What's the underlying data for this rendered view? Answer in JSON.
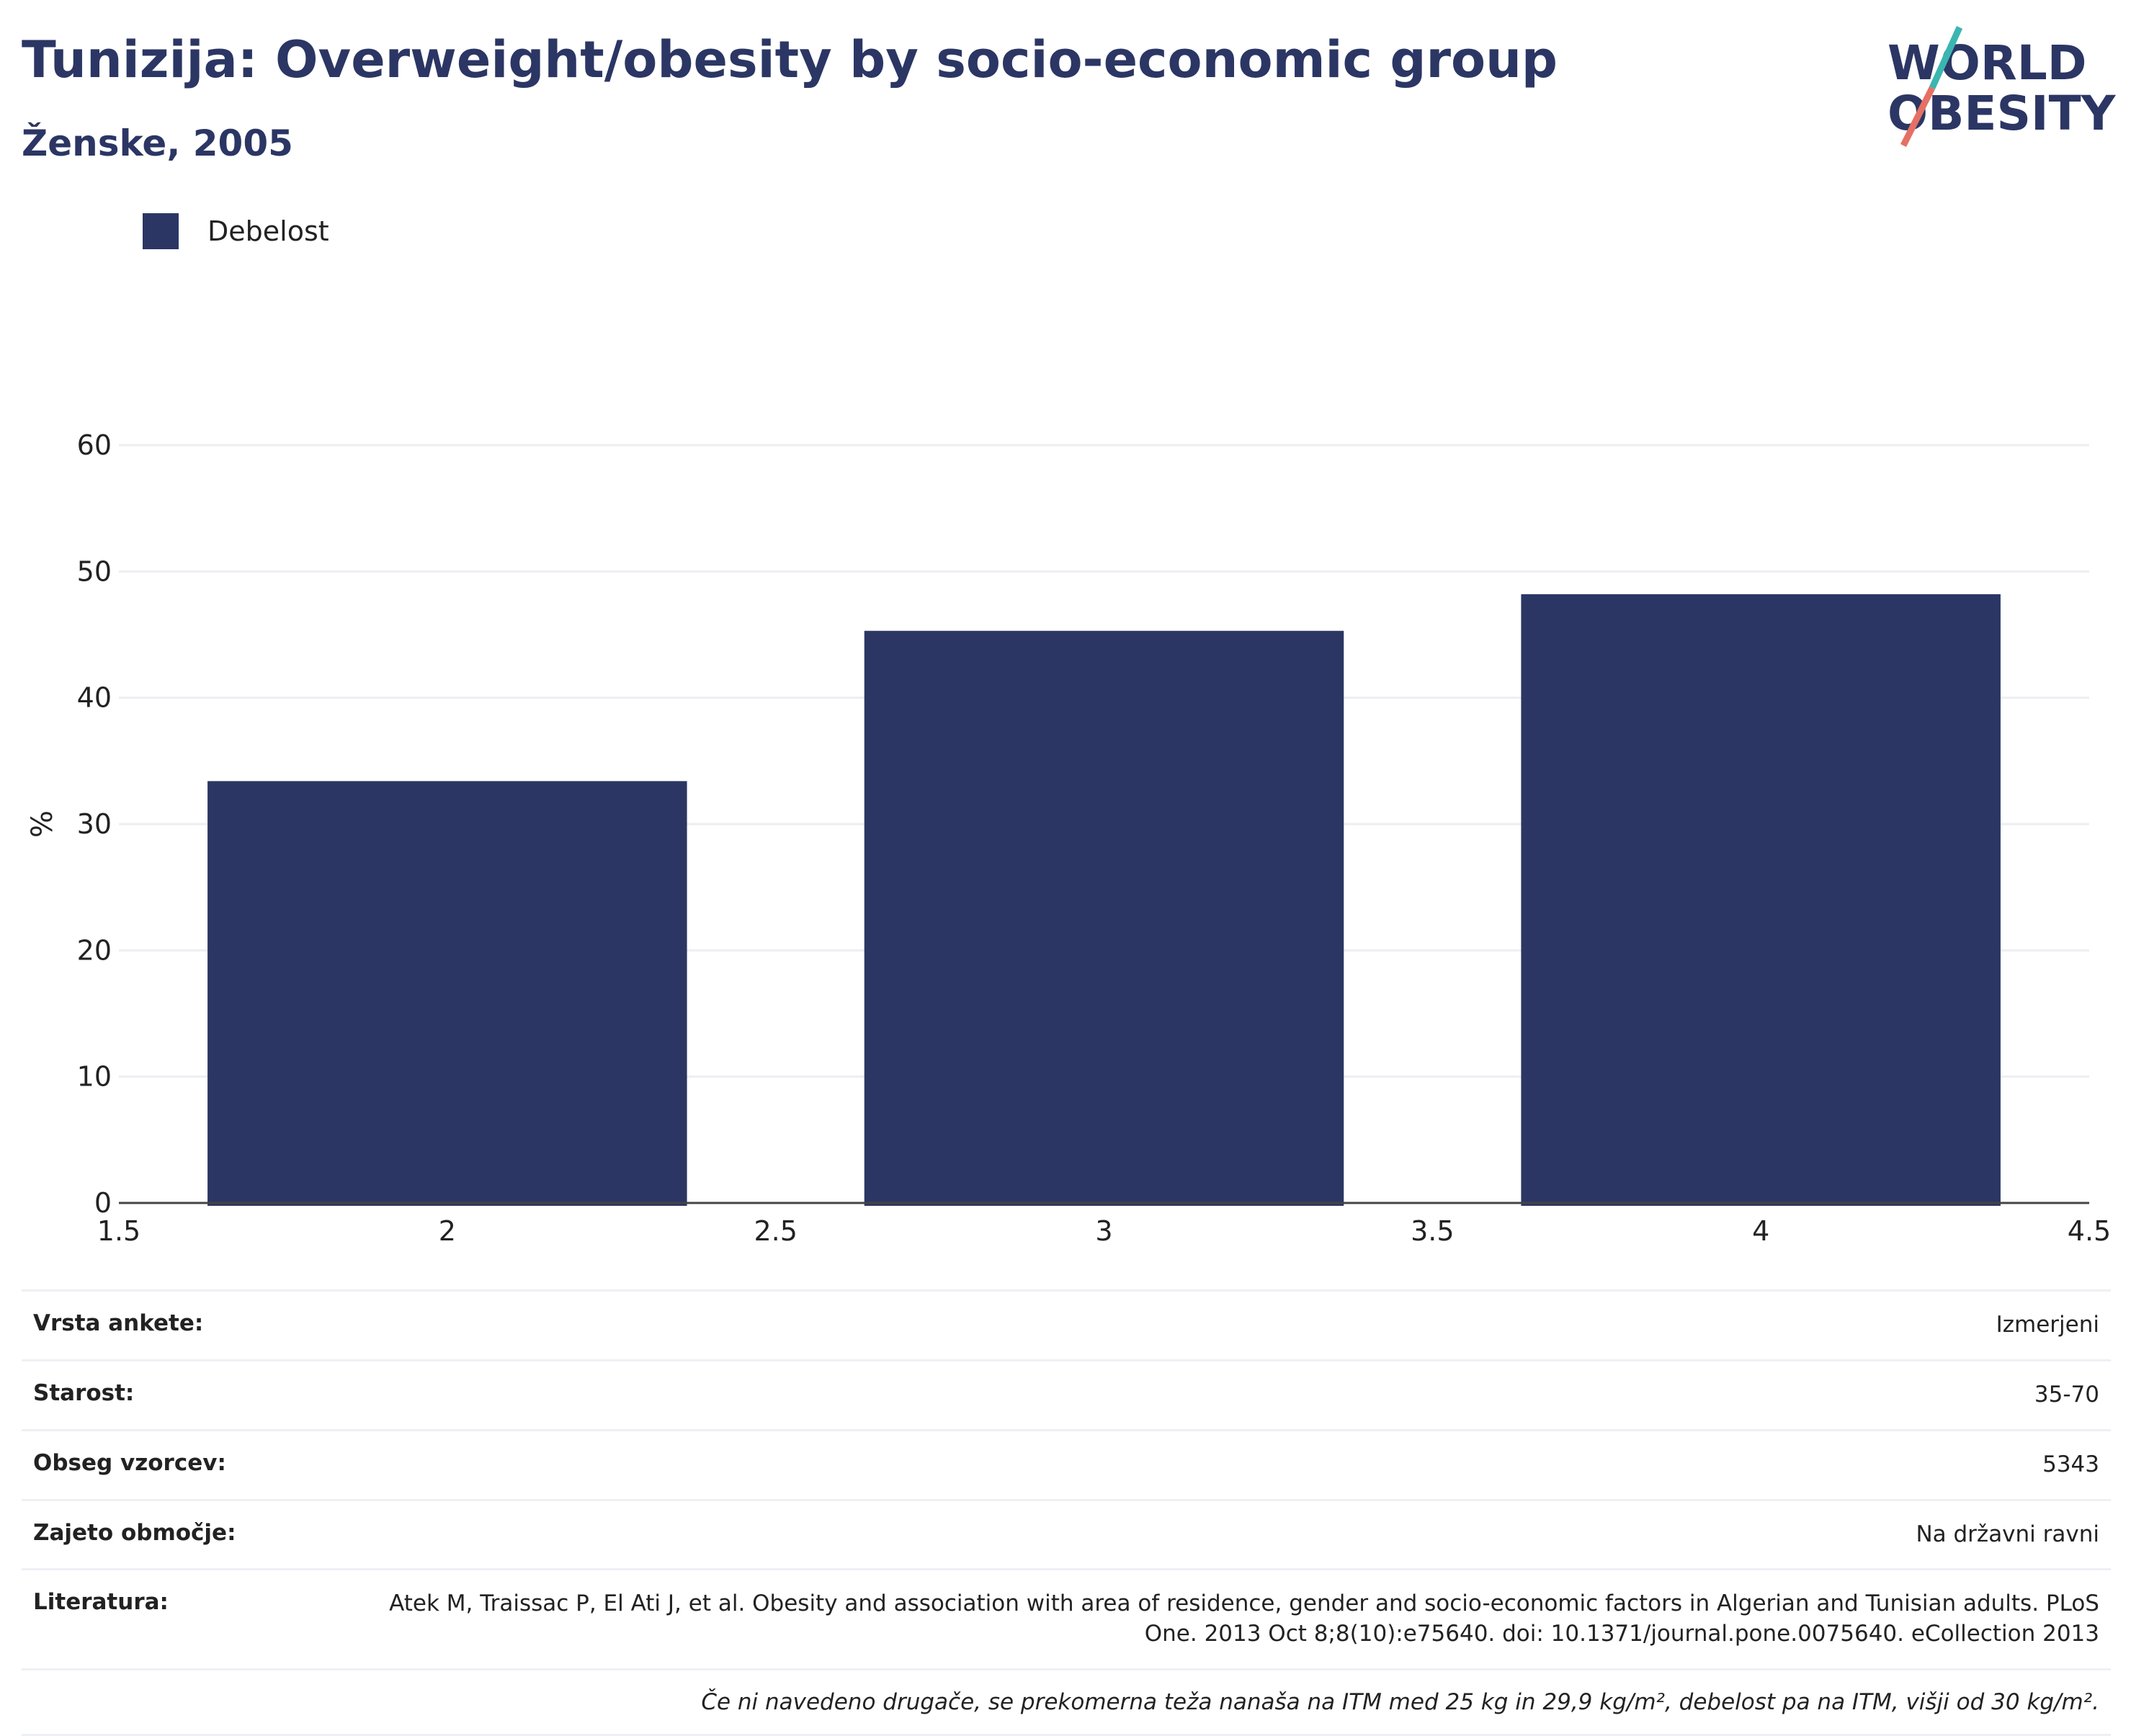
{
  "header": {
    "title": "Tunizija: Overweight/obesity by socio-economic group",
    "subtitle": "Ženske, 2005"
  },
  "logo": {
    "line1": "WORLD",
    "line2": "OBESITY"
  },
  "colors": {
    "bar": "#2b3664",
    "title": "#2b3664",
    "grid": "#eceef2",
    "logo_teal": "#3bb6b0",
    "logo_coral": "#e57063"
  },
  "chart_data": {
    "type": "bar",
    "title": "Tunizija: Overweight/obesity by socio-economic group",
    "subtitle": "Ženske, 2005",
    "xlabel": "",
    "ylabel": "%",
    "xlim": [
      1.5,
      4.5
    ],
    "ylim": [
      0,
      60
    ],
    "xticks": [
      "1.5",
      "2",
      "2.5",
      "3",
      "3.5",
      "4",
      "4.5"
    ],
    "yticks": [
      "0",
      "10",
      "20",
      "30",
      "40",
      "50",
      "60"
    ],
    "grid": true,
    "legend_position": "top-left",
    "series": [
      {
        "name": "Debelost",
        "x": [
          2,
          3,
          4
        ],
        "values": [
          33.4,
          45.3,
          48.2
        ]
      }
    ]
  },
  "info": {
    "rows": [
      {
        "label": "Vrsta ankete:",
        "value": "Izmerjeni"
      },
      {
        "label": "Starost:",
        "value": "35-70"
      },
      {
        "label": "Obseg vzorcev:",
        "value": "5343"
      },
      {
        "label": "Zajeto območje:",
        "value": "Na državni ravni"
      },
      {
        "label": "Literatura:",
        "value": "Atek M, Traissac P, El Ati J, et al. Obesity and association with area of residence, gender and socio-economic factors in Algerian and Tunisian adults. PLoS One. 2013 Oct 8;8(10):e75640. doi: 10.1371/journal.pone.0075640. eCollection 2013"
      }
    ],
    "note": "Če ni navedeno drugače, se prekomerna teža nanaša na ITM med 25 kg in 29,9 kg/m², debelost pa na ITM, višji od 30 kg/m²."
  }
}
